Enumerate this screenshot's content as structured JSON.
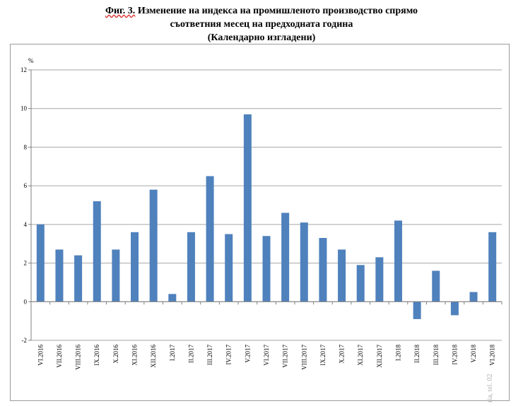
{
  "chart_data": {
    "type": "bar",
    "title_prefix": "Фиг. 3.",
    "title_line1": "Изменение на индекса на промишленото производство спрямо",
    "title_line2": "съответния месец на предходната година",
    "subtitle": "(Календарно изгладени)",
    "ylabel": "%",
    "xlabel": "",
    "ylim": [
      -2,
      12
    ],
    "yticks": [
      -2,
      0,
      2,
      4,
      6,
      8,
      10,
      12
    ],
    "grid": true,
    "bar_color": "#4f81bd",
    "watermark": "ria, tel. 02",
    "categories": [
      "VI.2016",
      "VII.2016",
      "VIII.2016",
      "IX.2016",
      "X.2016",
      "XI.2016",
      "XII.2016",
      "I.2017",
      "II.2017",
      "III.2017",
      "IV.2017",
      "V.2017",
      "VI.2017",
      "VII.2017",
      "VIII.2017",
      "IX.2017",
      "X.2017",
      "XI.2017",
      "XII.2017",
      "I.2018",
      "II.2018",
      "III.2018",
      "IV.2018",
      "V.2018",
      "VI.2018"
    ],
    "values": [
      4.0,
      2.7,
      2.4,
      5.2,
      2.7,
      3.6,
      5.8,
      0.4,
      3.6,
      6.5,
      3.5,
      9.7,
      3.4,
      4.6,
      4.1,
      3.3,
      2.7,
      1.9,
      2.3,
      4.2,
      -0.9,
      1.6,
      -0.7,
      0.5,
      3.6
    ]
  }
}
